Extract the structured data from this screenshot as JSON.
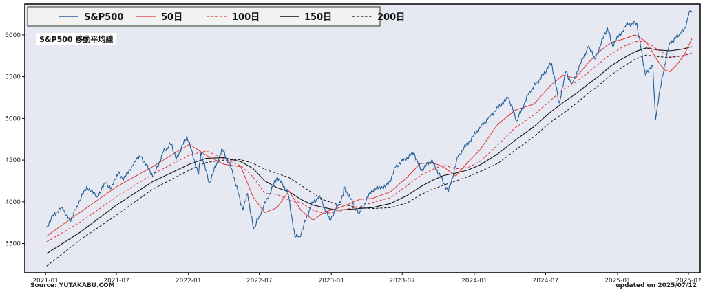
{
  "chart_data": {
    "type": "line",
    "title": "S&P500 移動平均線",
    "x_range": [
      "2020-11-09",
      "2025-07-31"
    ],
    "ylim": [
      3150,
      6370
    ],
    "y_ticks": [
      3500,
      4000,
      4500,
      5000,
      5500,
      6000
    ],
    "x_ticks": [
      "2021-01",
      "2021-07",
      "2022-01",
      "2022-07",
      "2023-01",
      "2023-07",
      "2024-01",
      "2024-07",
      "2025-01",
      "2025-07"
    ],
    "grid": false,
    "legend_position": "top-left, outside plot",
    "background": "#e6e8f2",
    "legend": [
      {
        "key": "sp",
        "name": "S&P500",
        "color": "#1f5f96",
        "dash": "solid",
        "width": 1.1
      },
      {
        "key": "ma50",
        "name": "50日",
        "color": "#e03030",
        "dash": "solid",
        "width": 1.0
      },
      {
        "key": "ma100",
        "name": "100日",
        "color": "#e03030",
        "dash": "dashed",
        "width": 1.0
      },
      {
        "key": "ma150",
        "name": "150日",
        "color": "#111111",
        "dash": "solid",
        "width": 1.1
      },
      {
        "key": "ma200",
        "name": "200日",
        "color": "#111111",
        "dash": "dashed",
        "width": 1.0
      }
    ],
    "series": {
      "sp": [
        [
          "2021-01-04",
          3700
        ],
        [
          "2021-01-22",
          3850
        ],
        [
          "2021-02-12",
          3935
        ],
        [
          "2021-03-04",
          3770
        ],
        [
          "2021-03-26",
          3975
        ],
        [
          "2021-04-16",
          4185
        ],
        [
          "2021-05-12",
          4060
        ],
        [
          "2021-06-04",
          4230
        ],
        [
          "2021-06-18",
          4160
        ],
        [
          "2021-07-07",
          4360
        ],
        [
          "2021-07-19",
          4260
        ],
        [
          "2021-08-16",
          4480
        ],
        [
          "2021-09-02",
          4540
        ],
        [
          "2021-10-04",
          4300
        ],
        [
          "2021-10-29",
          4600
        ],
        [
          "2021-11-18",
          4700
        ],
        [
          "2021-12-01",
          4510
        ],
        [
          "2021-12-28",
          4790
        ],
        [
          "2022-01-27",
          4330
        ],
        [
          "2022-02-02",
          4590
        ],
        [
          "2022-02-23",
          4225
        ],
        [
          "2022-03-29",
          4630
        ],
        [
          "2022-04-21",
          4400
        ],
        [
          "2022-05-20",
          3900
        ],
        [
          "2022-06-01",
          4100
        ],
        [
          "2022-06-16",
          3670
        ],
        [
          "2022-07-01",
          3830
        ],
        [
          "2022-08-16",
          4300
        ],
        [
          "2022-09-12",
          4110
        ],
        [
          "2022-09-30",
          3585
        ],
        [
          "2022-10-12",
          3580
        ],
        [
          "2022-11-10",
          3950
        ],
        [
          "2022-12-01",
          4080
        ],
        [
          "2022-12-28",
          3780
        ],
        [
          "2023-01-31",
          4075
        ],
        [
          "2023-02-02",
          4180
        ],
        [
          "2023-03-13",
          3855
        ],
        [
          "2023-04-14",
          4140
        ],
        [
          "2023-05-26",
          4200
        ],
        [
          "2023-06-15",
          4425
        ],
        [
          "2023-07-31",
          4590
        ],
        [
          "2023-08-18",
          4370
        ],
        [
          "2023-09-14",
          4500
        ],
        [
          "2023-10-27",
          4120
        ],
        [
          "2023-11-21",
          4550
        ],
        [
          "2023-12-28",
          4780
        ],
        [
          "2024-02-09",
          5025
        ],
        [
          "2024-03-28",
          5250
        ],
        [
          "2024-04-19",
          4970
        ],
        [
          "2024-05-21",
          5320
        ],
        [
          "2024-06-17",
          5470
        ],
        [
          "2024-07-16",
          5670
        ],
        [
          "2024-08-05",
          5185
        ],
        [
          "2024-08-22",
          5560
        ],
        [
          "2024-09-06",
          5410
        ],
        [
          "2024-10-18",
          5865
        ],
        [
          "2024-11-04",
          5710
        ],
        [
          "2024-12-06",
          6090
        ],
        [
          "2024-12-19",
          5870
        ],
        [
          "2025-01-23",
          6120
        ],
        [
          "2025-02-19",
          6145
        ],
        [
          "2025-03-13",
          5520
        ],
        [
          "2025-04-01",
          5630
        ],
        [
          "2025-04-08",
          4985
        ],
        [
          "2025-04-24",
          5480
        ],
        [
          "2025-05-13",
          5890
        ],
        [
          "2025-06-11",
          6020
        ],
        [
          "2025-06-24",
          6090
        ],
        [
          "2025-07-03",
          6280
        ],
        [
          "2025-07-10",
          6285
        ]
      ],
      "ma50": [
        [
          "2021-01-04",
          3590
        ],
        [
          "2021-04-01",
          3880
        ],
        [
          "2021-07-01",
          4180
        ],
        [
          "2021-10-01",
          4420
        ],
        [
          "2022-01-03",
          4690
        ],
        [
          "2022-02-15",
          4560
        ],
        [
          "2022-04-01",
          4450
        ],
        [
          "2022-05-15",
          4420
        ],
        [
          "2022-06-15",
          4060
        ],
        [
          "2022-07-15",
          3870
        ],
        [
          "2022-08-15",
          3930
        ],
        [
          "2022-09-15",
          4130
        ],
        [
          "2022-10-15",
          3900
        ],
        [
          "2022-11-15",
          3780
        ],
        [
          "2022-12-15",
          3880
        ],
        [
          "2023-01-15",
          3920
        ],
        [
          "2023-02-15",
          3975
        ],
        [
          "2023-03-15",
          4030
        ],
        [
          "2023-04-15",
          4040
        ],
        [
          "2023-06-01",
          4120
        ],
        [
          "2023-07-15",
          4300
        ],
        [
          "2023-08-15",
          4455
        ],
        [
          "2023-09-15",
          4475
        ],
        [
          "2023-10-15",
          4415
        ],
        [
          "2023-11-15",
          4310
        ],
        [
          "2023-12-15",
          4470
        ],
        [
          "2024-01-15",
          4620
        ],
        [
          "2024-03-01",
          4930
        ],
        [
          "2024-04-15",
          5100
        ],
        [
          "2024-06-01",
          5170
        ],
        [
          "2024-07-15",
          5400
        ],
        [
          "2024-08-15",
          5520
        ],
        [
          "2024-09-15",
          5480
        ],
        [
          "2024-10-15",
          5650
        ],
        [
          "2024-11-15",
          5800
        ],
        [
          "2024-12-15",
          5910
        ],
        [
          "2025-01-15",
          5950
        ],
        [
          "2025-02-15",
          6000
        ],
        [
          "2025-03-15",
          5920
        ],
        [
          "2025-04-15",
          5680
        ],
        [
          "2025-05-01",
          5580
        ],
        [
          "2025-05-15",
          5560
        ],
        [
          "2025-06-01",
          5640
        ],
        [
          "2025-06-20",
          5760
        ],
        [
          "2025-07-10",
          5960
        ]
      ],
      "ma100": [
        [
          "2021-01-04",
          3520
        ],
        [
          "2021-04-01",
          3760
        ],
        [
          "2021-07-01",
          4060
        ],
        [
          "2021-10-01",
          4330
        ],
        [
          "2022-01-03",
          4560
        ],
        [
          "2022-02-15",
          4610
        ],
        [
          "2022-04-01",
          4520
        ],
        [
          "2022-05-15",
          4430
        ],
        [
          "2022-06-15",
          4300
        ],
        [
          "2022-07-15",
          4100
        ],
        [
          "2022-08-15",
          4090
        ],
        [
          "2022-09-15",
          4020
        ],
        [
          "2022-10-15",
          3990
        ],
        [
          "2022-11-15",
          3900
        ],
        [
          "2022-12-15",
          3860
        ],
        [
          "2023-01-15",
          3880
        ],
        [
          "2023-02-15",
          3920
        ],
        [
          "2023-03-15",
          3940
        ],
        [
          "2023-04-15",
          3990
        ],
        [
          "2023-06-01",
          4050
        ],
        [
          "2023-07-15",
          4200
        ],
        [
          "2023-08-15",
          4310
        ],
        [
          "2023-09-15",
          4385
        ],
        [
          "2023-10-15",
          4440
        ],
        [
          "2023-11-15",
          4395
        ],
        [
          "2023-12-15",
          4410
        ],
        [
          "2024-01-15",
          4480
        ],
        [
          "2024-03-01",
          4680
        ],
        [
          "2024-04-15",
          4890
        ],
        [
          "2024-06-01",
          5040
        ],
        [
          "2024-07-15",
          5220
        ],
        [
          "2024-08-15",
          5350
        ],
        [
          "2024-09-15",
          5430
        ],
        [
          "2024-10-15",
          5540
        ],
        [
          "2024-11-15",
          5660
        ],
        [
          "2024-12-15",
          5770
        ],
        [
          "2025-01-15",
          5860
        ],
        [
          "2025-02-15",
          5920
        ],
        [
          "2025-03-15",
          5920
        ],
        [
          "2025-04-15",
          5820
        ],
        [
          "2025-05-15",
          5740
        ],
        [
          "2025-06-15",
          5750
        ],
        [
          "2025-07-10",
          5780
        ]
      ],
      "ma150": [
        [
          "2021-01-04",
          3380
        ],
        [
          "2021-04-01",
          3640
        ],
        [
          "2021-07-01",
          3960
        ],
        [
          "2021-10-01",
          4240
        ],
        [
          "2022-01-03",
          4450
        ],
        [
          "2022-02-15",
          4520
        ],
        [
          "2022-04-01",
          4530
        ],
        [
          "2022-05-15",
          4480
        ],
        [
          "2022-06-15",
          4400
        ],
        [
          "2022-07-15",
          4250
        ],
        [
          "2022-08-15",
          4170
        ],
        [
          "2022-09-15",
          4120
        ],
        [
          "2022-10-15",
          4030
        ],
        [
          "2022-11-15",
          3960
        ],
        [
          "2022-12-15",
          3930
        ],
        [
          "2023-01-15",
          3900
        ],
        [
          "2023-02-15",
          3910
        ],
        [
          "2023-03-15",
          3920
        ],
        [
          "2023-04-15",
          3930
        ],
        [
          "2023-06-01",
          3980
        ],
        [
          "2023-07-15",
          4080
        ],
        [
          "2023-08-15",
          4175
        ],
        [
          "2023-09-15",
          4255
        ],
        [
          "2023-10-15",
          4315
        ],
        [
          "2023-11-15",
          4345
        ],
        [
          "2023-12-15",
          4380
        ],
        [
          "2024-01-15",
          4440
        ],
        [
          "2024-03-01",
          4575
        ],
        [
          "2024-04-15",
          4740
        ],
        [
          "2024-06-01",
          4900
        ],
        [
          "2024-07-15",
          5080
        ],
        [
          "2024-08-15",
          5190
        ],
        [
          "2024-09-15",
          5290
        ],
        [
          "2024-10-15",
          5400
        ],
        [
          "2024-11-15",
          5510
        ],
        [
          "2024-12-15",
          5630
        ],
        [
          "2025-01-15",
          5720
        ],
        [
          "2025-02-15",
          5800
        ],
        [
          "2025-03-15",
          5845
        ],
        [
          "2025-04-15",
          5820
        ],
        [
          "2025-05-15",
          5810
        ],
        [
          "2025-06-15",
          5830
        ],
        [
          "2025-07-10",
          5860
        ]
      ],
      "ma200": [
        [
          "2021-01-04",
          3230
        ],
        [
          "2021-04-01",
          3550
        ],
        [
          "2021-07-01",
          3840
        ],
        [
          "2021-10-01",
          4150
        ],
        [
          "2022-01-03",
          4380
        ],
        [
          "2022-02-15",
          4470
        ],
        [
          "2022-04-01",
          4500
        ],
        [
          "2022-05-15",
          4505
        ],
        [
          "2022-06-15",
          4460
        ],
        [
          "2022-07-15",
          4390
        ],
        [
          "2022-08-15",
          4340
        ],
        [
          "2022-09-15",
          4290
        ],
        [
          "2022-10-15",
          4200
        ],
        [
          "2022-11-15",
          4100
        ],
        [
          "2022-12-15",
          4020
        ],
        [
          "2023-01-15",
          3970
        ],
        [
          "2023-02-15",
          3955
        ],
        [
          "2023-03-15",
          3930
        ],
        [
          "2023-04-15",
          3920
        ],
        [
          "2023-06-01",
          3930
        ],
        [
          "2023-07-15",
          3990
        ],
        [
          "2023-08-15",
          4080
        ],
        [
          "2023-09-15",
          4150
        ],
        [
          "2023-10-15",
          4200
        ],
        [
          "2023-11-15",
          4250
        ],
        [
          "2023-12-15",
          4300
        ],
        [
          "2024-01-15",
          4360
        ],
        [
          "2024-03-01",
          4460
        ],
        [
          "2024-04-15",
          4620
        ],
        [
          "2024-06-01",
          4780
        ],
        [
          "2024-07-15",
          4960
        ],
        [
          "2024-08-15",
          5060
        ],
        [
          "2024-09-15",
          5170
        ],
        [
          "2024-10-15",
          5290
        ],
        [
          "2024-11-15",
          5400
        ],
        [
          "2024-12-15",
          5520
        ],
        [
          "2025-01-15",
          5620
        ],
        [
          "2025-02-15",
          5710
        ],
        [
          "2025-03-15",
          5760
        ],
        [
          "2025-04-15",
          5740
        ],
        [
          "2025-05-15",
          5730
        ],
        [
          "2025-06-15",
          5750
        ],
        [
          "2025-07-10",
          5780
        ]
      ]
    }
  },
  "footer": {
    "source": "Source: YUTAKABU.COM",
    "updated": "updated on 2025/07/12"
  }
}
